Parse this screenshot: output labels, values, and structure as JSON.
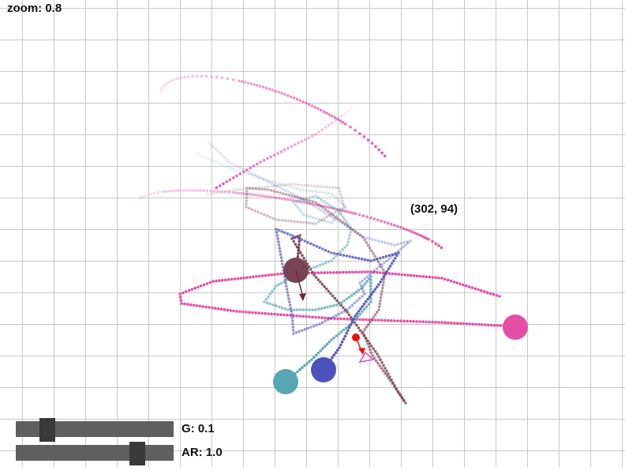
{
  "hud": {
    "zoom_label": "zoom: 0.8",
    "cursor_readout": "(302, 94)"
  },
  "controls": {
    "g_label": "G: 0.1",
    "g_value": 0.1,
    "g_fraction": 0.2,
    "ar_label": "AR: 1.0",
    "ar_value": 1.0,
    "ar_fraction": 0.77
  },
  "colors": {
    "grid": "#c8c8c8",
    "body_maroon": "#7a4353",
    "body_pink": "#e54ea6",
    "body_teal": "#58a5b4",
    "body_blue": "#4d52bc",
    "marker": "#ee1111",
    "velocity_arrow": "#6a2a3a"
  },
  "bodies": [
    {
      "name": "maroon-body",
      "color": "#7a4353"
    },
    {
      "name": "pink-body",
      "color": "#e54ea6"
    },
    {
      "name": "teal-body",
      "color": "#58a5b4"
    },
    {
      "name": "blue-body",
      "color": "#4d52bc"
    }
  ]
}
